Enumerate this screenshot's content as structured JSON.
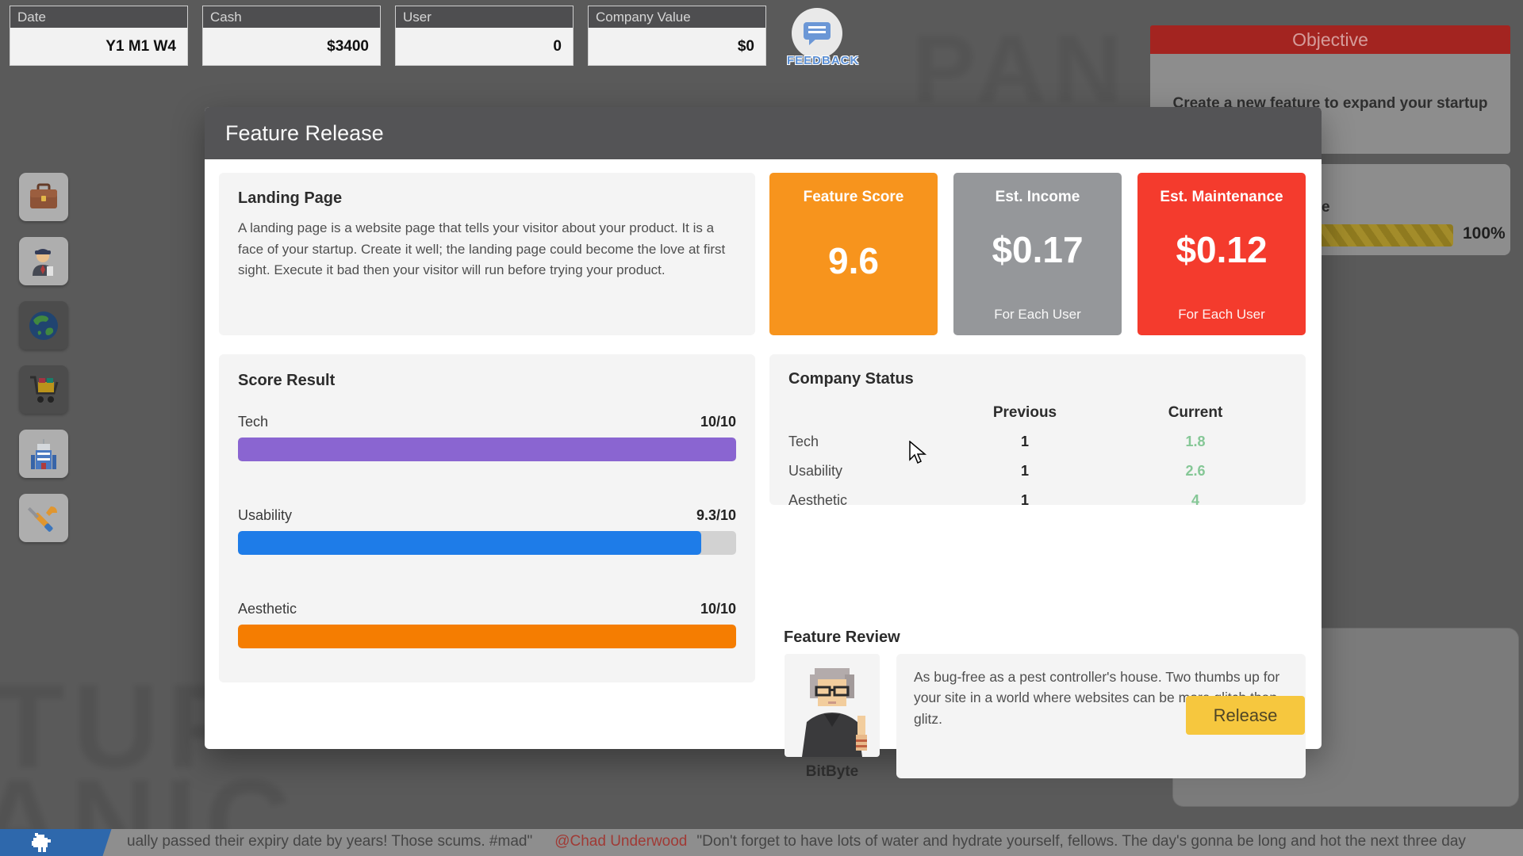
{
  "topbar": {
    "cells": [
      {
        "label": "Date",
        "value": "Y1 M1 W4"
      },
      {
        "label": "Cash",
        "value": "$3400"
      },
      {
        "label": "User",
        "value": "0"
      },
      {
        "label": "Company Value",
        "value": "$0"
      }
    ]
  },
  "feedback": {
    "label": "FEEDBACK"
  },
  "sidebar": {
    "items": [
      {
        "icon": "briefcase"
      },
      {
        "icon": "employee"
      },
      {
        "icon": "globe"
      },
      {
        "icon": "shopping-cart"
      },
      {
        "icon": "building"
      },
      {
        "icon": "tools"
      }
    ]
  },
  "objective": {
    "title": "Objective",
    "text": "Create a new feature to expand your startup",
    "progress_fragment": "e",
    "progress_percent": "100%"
  },
  "modal": {
    "title": "Feature Release",
    "feature": {
      "name": "Landing Page",
      "description": "A landing page is a website page that tells your visitor about your product. It is a face of your startup. Create it well; the landing page could become the love at first sight. Execute it bad then your visitor will run before trying your product."
    },
    "stats": [
      {
        "label": "Feature Score",
        "value": "9.6",
        "note": "",
        "color": "#f7941d"
      },
      {
        "label": "Est. Income",
        "value": "$0.17",
        "note": "For Each User",
        "color": "#95979a"
      },
      {
        "label": "Est. Maintenance",
        "value": "$0.12",
        "note": "For Each User",
        "color": "#f43b2d"
      }
    ],
    "score_result": {
      "heading": "Score Result",
      "rows": [
        {
          "label": "Tech",
          "value": "10/10",
          "pct": 100,
          "color": "#8a65d1"
        },
        {
          "label": "Usability",
          "value": "9.3/10",
          "pct": 93,
          "color": "#1e7ce8"
        },
        {
          "label": "Aesthetic",
          "value": "10/10",
          "pct": 100,
          "color": "#f57d01"
        }
      ]
    },
    "company_status": {
      "heading": "Company Status",
      "col_previous": "Previous",
      "col_current": "Current",
      "rows": [
        {
          "label": "Tech",
          "previous": "1",
          "current": "1.8"
        },
        {
          "label": "Usability",
          "previous": "1",
          "current": "2.6"
        },
        {
          "label": "Aesthetic",
          "previous": "1",
          "current": "4"
        }
      ]
    },
    "feature_review": {
      "heading": "Feature Review",
      "reviewer": "BitByte",
      "text": "As bug-free as a pest controller's house. Two thumbs up for your site in a world where websites can be more glitch than glitz."
    },
    "release_label": "Release"
  },
  "ticker": {
    "part1": "ually passed their expiry date by years! Those scums. #mad\"",
    "handle": "@Chad Underwood",
    "part2": "\"Don't forget to have lots of water and hydrate yourself, fellows. The day's gonna be long and hot the next three day"
  },
  "background": {
    "logo_fragments": [
      "TUP",
      "ANIC",
      "PAN"
    ]
  },
  "colors": {
    "green_current": "#85c796",
    "release_yellow": "#f6c73e",
    "objective_red": "#a32420",
    "ticker_handle_red": "#a03a35"
  }
}
